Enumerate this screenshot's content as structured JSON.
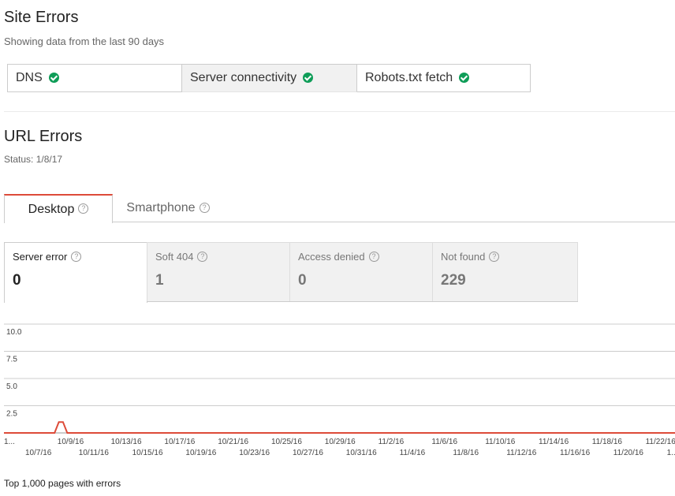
{
  "site_errors": {
    "title": "Site Errors",
    "subtitle": "Showing data from the last 90 days",
    "tabs": [
      {
        "label": "DNS",
        "status": "ok"
      },
      {
        "label": "Server connectivity",
        "status": "ok"
      },
      {
        "label": "Robots.txt fetch",
        "status": "ok"
      }
    ]
  },
  "url_errors": {
    "title": "URL Errors",
    "status": "Status: 1/8/17",
    "device_tabs": [
      {
        "label": "Desktop",
        "help": "?"
      },
      {
        "label": "Smartphone",
        "help": "?"
      }
    ],
    "metrics": [
      {
        "label": "Server error",
        "value": "0",
        "help": "?"
      },
      {
        "label": "Soft 404",
        "value": "1",
        "help": "?"
      },
      {
        "label": "Access denied",
        "value": "0",
        "help": "?"
      },
      {
        "label": "Not found",
        "value": "229",
        "help": "?"
      }
    ]
  },
  "colors": {
    "accent": "#dd4b39",
    "ok": "#0f9d58",
    "line": "#dd4b39"
  },
  "chart_data": {
    "type": "line",
    "ylim": [
      0,
      10.0
    ],
    "y_ticks": [
      "10.0",
      "7.5",
      "5.0",
      "2.5"
    ],
    "x_tick_labels_row1": [
      "1...",
      "10/9/16",
      "10/13/16",
      "10/17/16",
      "10/21/16",
      "10/25/16",
      "10/29/16",
      "11/2/16",
      "11/6/16",
      "11/10/16",
      "11/14/16",
      "11/18/16",
      "11/22/16"
    ],
    "x_tick_labels_row2": [
      "10/7/16",
      "10/11/16",
      "10/15/16",
      "10/19/16",
      "10/23/16",
      "10/27/16",
      "10/31/16",
      "11/4/16",
      "11/8/16",
      "11/12/16",
      "11/16/16",
      "11/20/16",
      "1..."
    ],
    "series": [
      {
        "values": [
          0,
          0,
          0,
          0,
          0,
          0,
          0,
          0,
          0,
          0,
          0,
          0,
          0,
          1,
          1,
          0,
          0,
          0,
          0,
          0,
          0,
          0,
          0,
          0,
          0,
          0,
          0,
          0,
          0,
          0,
          0,
          0,
          0,
          0,
          0,
          0,
          0,
          0,
          0,
          0,
          0,
          0,
          0,
          0,
          0,
          0,
          0,
          0,
          0,
          0,
          0,
          0,
          0,
          0,
          0,
          0,
          0,
          0,
          0,
          0,
          0,
          0,
          0,
          0,
          0,
          0,
          0,
          0,
          0,
          0,
          0,
          0,
          0,
          0,
          0,
          0,
          0,
          0,
          0,
          0,
          0,
          0,
          0,
          0,
          0,
          0,
          0,
          0,
          0,
          0,
          0,
          0,
          0,
          0,
          0,
          0,
          0,
          0,
          0,
          0,
          0,
          0,
          0,
          0,
          0,
          0,
          0,
          0,
          0,
          0,
          0,
          0,
          0,
          0,
          0,
          0,
          0,
          0,
          0,
          0,
          0,
          0,
          0,
          0,
          0,
          0,
          0,
          0,
          0,
          0,
          0,
          0,
          0,
          0,
          0,
          0,
          0,
          0,
          0,
          0,
          0,
          0,
          0,
          0,
          0,
          0,
          0,
          0,
          0,
          0,
          0,
          0,
          0,
          0,
          0,
          0,
          0,
          0,
          0,
          0
        ]
      }
    ]
  },
  "footer_text": "Top 1,000 pages with errors"
}
